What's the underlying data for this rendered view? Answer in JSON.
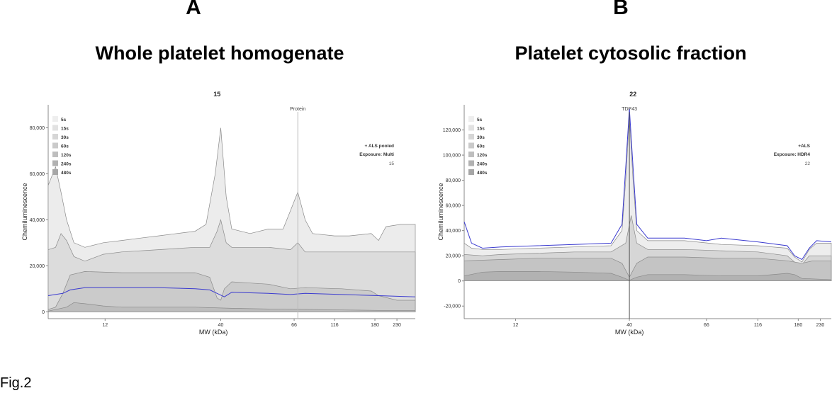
{
  "figure": {
    "letter_a": "A",
    "letter_b": "B",
    "title_a": "Whole platelet homogenate",
    "title_b": "Platelet cytosolic fraction",
    "fig_label": "Fig.2"
  },
  "chart_data": [
    {
      "type": "area",
      "title": "15",
      "xlabel": "MW (kDa)",
      "ylabel": "Chemiluminescence",
      "ylim": [
        -3000,
        90000
      ],
      "y_ticks": [
        0,
        20000,
        40000,
        60000,
        80000
      ],
      "y_tick_labels": [
        "0",
        "20,000",
        "40,000",
        "60,000",
        "80,000"
      ],
      "x_ticks": [
        {
          "label": "12",
          "pos": 0.155
        },
        {
          "label": "40",
          "pos": 0.47
        },
        {
          "label": "66",
          "pos": 0.67
        },
        {
          "label": "116",
          "pos": 0.78
        },
        {
          "label": "180",
          "pos": 0.89
        },
        {
          "label": "230",
          "pos": 0.95
        }
      ],
      "legend": {
        "placement": "top-left",
        "entries": [
          "5s",
          "15s",
          "30s",
          "60s",
          "120s",
          "240s",
          "480s"
        ]
      },
      "info": {
        "sample": "+ ALS pooled",
        "exposure": "Exposure: Multi",
        "id": "15"
      },
      "marker": {
        "label": "Protein",
        "pos": 0.68
      },
      "series": [
        {
          "name": "480s",
          "color": "#ececec",
          "pts": [
            [
              0,
              55000
            ],
            [
              0.02,
              63000
            ],
            [
              0.035,
              52000
            ],
            [
              0.05,
              40000
            ],
            [
              0.07,
              30000
            ],
            [
              0.1,
              28000
            ],
            [
              0.15,
              30000
            ],
            [
              0.2,
              31000
            ],
            [
              0.25,
              32000
            ],
            [
              0.3,
              33000
            ],
            [
              0.35,
              34000
            ],
            [
              0.4,
              35000
            ],
            [
              0.43,
              38000
            ],
            [
              0.455,
              60000
            ],
            [
              0.47,
              80000
            ],
            [
              0.485,
              50000
            ],
            [
              0.5,
              36000
            ],
            [
              0.55,
              34000
            ],
            [
              0.6,
              36000
            ],
            [
              0.64,
              36000
            ],
            [
              0.66,
              44000
            ],
            [
              0.68,
              52000
            ],
            [
              0.7,
              40000
            ],
            [
              0.72,
              34000
            ],
            [
              0.78,
              33000
            ],
            [
              0.82,
              33000
            ],
            [
              0.88,
              34000
            ],
            [
              0.9,
              31000
            ],
            [
              0.92,
              37000
            ],
            [
              0.96,
              38000
            ],
            [
              1,
              38000
            ]
          ]
        },
        {
          "name": "240s",
          "color": "#dcdcdc",
          "pts": [
            [
              0,
              27000
            ],
            [
              0.02,
              28000
            ],
            [
              0.035,
              34000
            ],
            [
              0.05,
              31000
            ],
            [
              0.07,
              24000
            ],
            [
              0.1,
              22000
            ],
            [
              0.15,
              25000
            ],
            [
              0.2,
              26000
            ],
            [
              0.3,
              27000
            ],
            [
              0.4,
              28000
            ],
            [
              0.44,
              28000
            ],
            [
              0.46,
              35000
            ],
            [
              0.47,
              40000
            ],
            [
              0.485,
              30000
            ],
            [
              0.5,
              28000
            ],
            [
              0.6,
              28000
            ],
            [
              0.66,
              27000
            ],
            [
              0.68,
              30000
            ],
            [
              0.7,
              26000
            ],
            [
              0.8,
              26000
            ],
            [
              0.9,
              26000
            ],
            [
              1,
              26000
            ]
          ]
        },
        {
          "name": "120s",
          "color": "#cbcbcb",
          "pts": [
            [
              0,
              1000
            ],
            [
              0.02,
              2000
            ],
            [
              0.04,
              8000
            ],
            [
              0.06,
              16000
            ],
            [
              0.1,
              17500
            ],
            [
              0.2,
              17000
            ],
            [
              0.3,
              17000
            ],
            [
              0.4,
              17000
            ],
            [
              0.44,
              15000
            ],
            [
              0.46,
              6000
            ],
            [
              0.47,
              5000
            ],
            [
              0.48,
              10000
            ],
            [
              0.5,
              13000
            ],
            [
              0.55,
              12500
            ],
            [
              0.6,
              12000
            ],
            [
              0.66,
              10000
            ],
            [
              0.7,
              10500
            ],
            [
              0.8,
              10000
            ],
            [
              0.88,
              9000
            ],
            [
              0.9,
              7000
            ],
            [
              0.95,
              5000
            ],
            [
              1,
              5000
            ]
          ]
        },
        {
          "name": "60s",
          "color": "#bdbdbd",
          "pts": [
            [
              0,
              300
            ],
            [
              0.05,
              2000
            ],
            [
              0.07,
              4000
            ],
            [
              0.1,
              3500
            ],
            [
              0.15,
              2500
            ],
            [
              0.2,
              2000
            ],
            [
              0.3,
              2000
            ],
            [
              0.4,
              2000
            ],
            [
              0.5,
              1500
            ],
            [
              0.6,
              1200
            ],
            [
              0.7,
              1000
            ],
            [
              0.8,
              800
            ],
            [
              0.9,
              600
            ],
            [
              1,
              600
            ]
          ]
        }
      ],
      "blue_line": [
        [
          0,
          7000
        ],
        [
          0.04,
          8000
        ],
        [
          0.06,
          9500
        ],
        [
          0.1,
          10500
        ],
        [
          0.2,
          10500
        ],
        [
          0.3,
          10500
        ],
        [
          0.4,
          10000
        ],
        [
          0.44,
          9500
        ],
        [
          0.46,
          8000
        ],
        [
          0.48,
          6500
        ],
        [
          0.5,
          8500
        ],
        [
          0.6,
          8000
        ],
        [
          0.66,
          7500
        ],
        [
          0.7,
          8000
        ],
        [
          0.8,
          7500
        ],
        [
          0.9,
          7000
        ],
        [
          1,
          6500
        ]
      ]
    },
    {
      "type": "area",
      "title": "22",
      "xlabel": "MW (kDa)",
      "ylabel": "Chemiluminescence",
      "ylim": [
        -30000,
        140000
      ],
      "y_ticks": [
        -20000,
        0,
        20000,
        40000,
        60000,
        80000,
        100000,
        120000
      ],
      "y_tick_labels": [
        "-20,000",
        "0",
        "20,000",
        "40,000",
        "60,000",
        "80,000",
        "100,000",
        "120,000"
      ],
      "x_ticks": [
        {
          "label": "12",
          "pos": 0.14
        },
        {
          "label": "40",
          "pos": 0.45
        },
        {
          "label": "66",
          "pos": 0.66
        },
        {
          "label": "116",
          "pos": 0.8
        },
        {
          "label": "180",
          "pos": 0.91
        },
        {
          "label": "230",
          "pos": 0.97
        }
      ],
      "legend": {
        "placement": "top-left",
        "entries": [
          "5s",
          "15s",
          "30s",
          "60s",
          "120s",
          "240s",
          "480s"
        ]
      },
      "info": {
        "sample": "+ALS",
        "exposure": "Exposure: HDR4",
        "id": "22"
      },
      "marker": {
        "label": "TDP43",
        "pos": 0.45
      },
      "series": [
        {
          "name": "480s",
          "color": "#ededed",
          "pts": [
            [
              0,
              30000
            ],
            [
              0.02,
              26000
            ],
            [
              0.05,
              25000
            ],
            [
              0.1,
              25000
            ],
            [
              0.2,
              26000
            ],
            [
              0.3,
              27000
            ],
            [
              0.4,
              28000
            ],
            [
              0.43,
              40000
            ],
            [
              0.44,
              80000
            ],
            [
              0.45,
              130000
            ],
            [
              0.46,
              80000
            ],
            [
              0.47,
              40000
            ],
            [
              0.5,
              32000
            ],
            [
              0.6,
              32000
            ],
            [
              0.7,
              29000
            ],
            [
              0.8,
              28000
            ],
            [
              0.88,
              26000
            ],
            [
              0.9,
              19000
            ],
            [
              0.92,
              15000
            ],
            [
              0.94,
              25000
            ],
            [
              0.96,
              30000
            ],
            [
              1,
              30000
            ]
          ]
        },
        {
          "name": "240s",
          "color": "#d6d6d6",
          "pts": [
            [
              0,
              21000
            ],
            [
              0.05,
              20000
            ],
            [
              0.1,
              21000
            ],
            [
              0.2,
              22000
            ],
            [
              0.3,
              23000
            ],
            [
              0.4,
              23000
            ],
            [
              0.44,
              30000
            ],
            [
              0.455,
              52000
            ],
            [
              0.47,
              30000
            ],
            [
              0.5,
              25000
            ],
            [
              0.6,
              25000
            ],
            [
              0.7,
              24000
            ],
            [
              0.8,
              23000
            ],
            [
              0.88,
              20000
            ],
            [
              0.9,
              15000
            ],
            [
              0.92,
              13000
            ],
            [
              0.94,
              20000
            ],
            [
              1,
              20000
            ]
          ]
        },
        {
          "name": "120s",
          "color": "#c4c4c4",
          "pts": [
            [
              0,
              16000
            ],
            [
              0.1,
              17000
            ],
            [
              0.2,
              18000
            ],
            [
              0.3,
              18000
            ],
            [
              0.4,
              18000
            ],
            [
              0.43,
              14000
            ],
            [
              0.45,
              3000
            ],
            [
              0.47,
              14000
            ],
            [
              0.5,
              19000
            ],
            [
              0.6,
              19000
            ],
            [
              0.7,
              18000
            ],
            [
              0.8,
              18000
            ],
            [
              0.88,
              16000
            ],
            [
              0.92,
              14000
            ],
            [
              0.95,
              16000
            ],
            [
              1,
              16000
            ]
          ]
        },
        {
          "name": "60s",
          "color": "#b2b2b2",
          "pts": [
            [
              0,
              4000
            ],
            [
              0.05,
              7000
            ],
            [
              0.1,
              7500
            ],
            [
              0.2,
              7500
            ],
            [
              0.3,
              7000
            ],
            [
              0.4,
              6000
            ],
            [
              0.43,
              3000
            ],
            [
              0.45,
              500
            ],
            [
              0.47,
              3000
            ],
            [
              0.5,
              5000
            ],
            [
              0.6,
              5000
            ],
            [
              0.7,
              4000
            ],
            [
              0.8,
              4000
            ],
            [
              0.88,
              6000
            ],
            [
              0.9,
              5000
            ],
            [
              0.92,
              2000
            ],
            [
              1,
              1000
            ]
          ]
        }
      ],
      "blue_line": [
        [
          0,
          47000
        ],
        [
          0.02,
          30000
        ],
        [
          0.05,
          26000
        ],
        [
          0.1,
          27000
        ],
        [
          0.2,
          28000
        ],
        [
          0.3,
          29000
        ],
        [
          0.4,
          30000
        ],
        [
          0.43,
          45000
        ],
        [
          0.44,
          90000
        ],
        [
          0.45,
          137000
        ],
        [
          0.46,
          90000
        ],
        [
          0.47,
          45000
        ],
        [
          0.5,
          34000
        ],
        [
          0.6,
          34000
        ],
        [
          0.66,
          32000
        ],
        [
          0.7,
          34000
        ],
        [
          0.8,
          31000
        ],
        [
          0.88,
          28000
        ],
        [
          0.9,
          20000
        ],
        [
          0.92,
          17000
        ],
        [
          0.94,
          26000
        ],
        [
          0.96,
          32000
        ],
        [
          1,
          31000
        ]
      ]
    }
  ]
}
